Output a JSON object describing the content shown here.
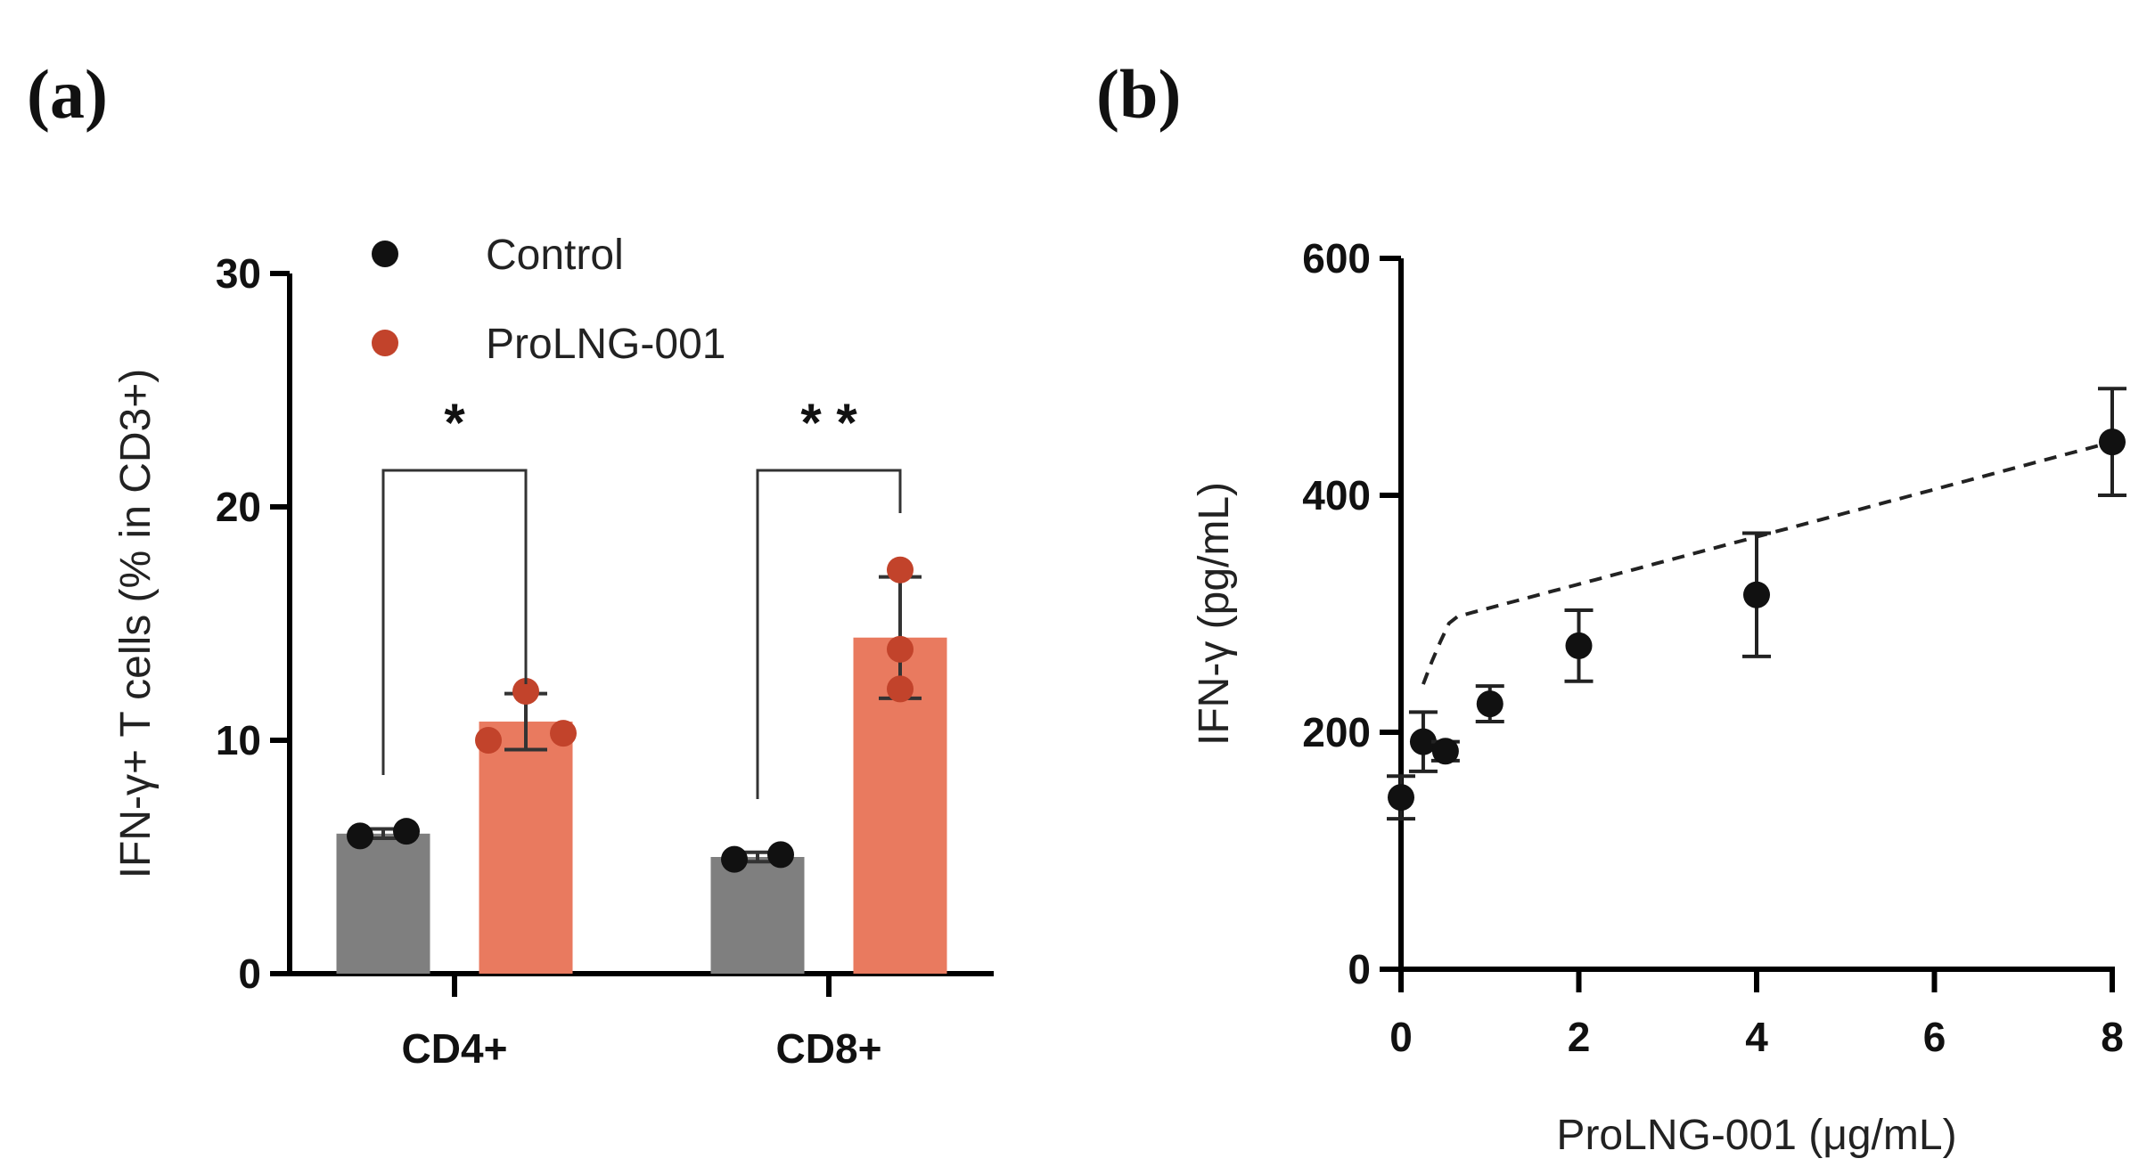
{
  "panels": {
    "a": "(a)",
    "b": "(b)"
  },
  "colors": {
    "control_bar": "#7f7f7f",
    "treatment_bar": "#e97a5f",
    "control_dot": "#111111",
    "treatment_dot": "#c2432b",
    "axis": "#000000"
  },
  "chart_data": [
    {
      "id": "a",
      "type": "bar",
      "categories": [
        "CD4+",
        "CD8+"
      ],
      "ylabel": "IFN-γ+ T cells (% in CD3+)",
      "xlabel": "",
      "ylim": [
        0,
        30
      ],
      "yticks": [
        0,
        10,
        20,
        30
      ],
      "legend": {
        "position": "top-left",
        "entries": [
          {
            "name": "Control",
            "color": "#111111"
          },
          {
            "name": "ProLNG-001",
            "color": "#c2432b"
          }
        ]
      },
      "series": [
        {
          "name": "Control",
          "values": [
            6.0,
            5.0
          ],
          "sd": [
            0.2,
            0.2
          ],
          "points": [
            [
              5.9,
              6.1
            ],
            [
              4.9,
              5.1
            ]
          ]
        },
        {
          "name": "ProLNG-001",
          "values": [
            10.8,
            14.4
          ],
          "sd": [
            1.2,
            2.6
          ],
          "points": [
            [
              10.0,
              12.1,
              10.3
            ],
            [
              17.3,
              13.9,
              12.2
            ]
          ]
        }
      ],
      "significance": [
        {
          "category": "CD4+",
          "label": "*"
        },
        {
          "category": "CD8+",
          "label": "* *"
        }
      ]
    },
    {
      "id": "b",
      "type": "scatter",
      "xlabel": "ProLNG-001 (μg/mL)",
      "ylabel": "IFN-γ (pg/mL)",
      "xlim": [
        0,
        8
      ],
      "ylim": [
        0,
        600
      ],
      "xticks": [
        0,
        2,
        4,
        6,
        8
      ],
      "yticks": [
        0,
        200,
        400,
        600
      ],
      "fit_line": "dashed",
      "x": [
        0,
        0.25,
        0.5,
        1,
        2,
        4,
        8
      ],
      "y": [
        145,
        192,
        184,
        224,
        273,
        316,
        445
      ],
      "err": [
        18,
        25,
        8,
        15,
        30,
        52,
        45
      ]
    }
  ]
}
